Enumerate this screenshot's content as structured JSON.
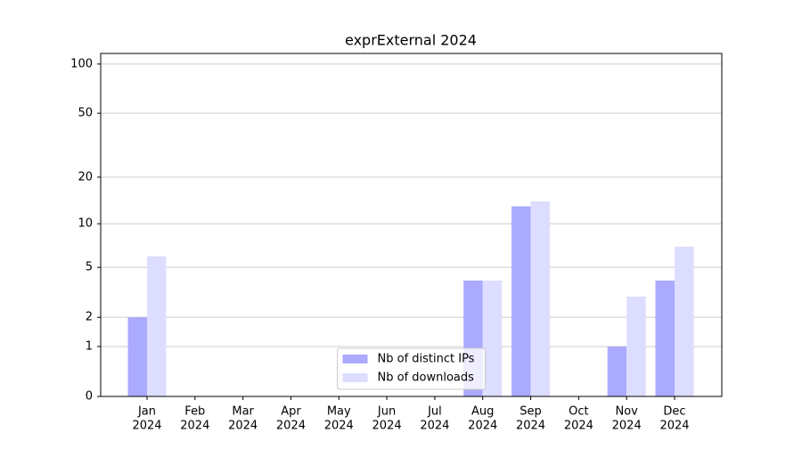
{
  "chart_data": {
    "type": "bar",
    "title": "exprExternal 2024",
    "categories": [
      [
        "Jan",
        "2024"
      ],
      [
        "Feb",
        "2024"
      ],
      [
        "Mar",
        "2024"
      ],
      [
        "Apr",
        "2024"
      ],
      [
        "May",
        "2024"
      ],
      [
        "Jun",
        "2024"
      ],
      [
        "Jul",
        "2024"
      ],
      [
        "Aug",
        "2024"
      ],
      [
        "Sep",
        "2024"
      ],
      [
        "Oct",
        "2024"
      ],
      [
        "Nov",
        "2024"
      ],
      [
        "Dec",
        "2024"
      ]
    ],
    "series": [
      {
        "name": "Nb of distinct IPs",
        "color": "#aaaaff",
        "values": [
          2,
          0,
          0,
          0,
          0,
          0,
          0,
          4,
          13,
          0,
          1,
          4
        ]
      },
      {
        "name": "Nb of downloads",
        "color": "#ddddff",
        "values": [
          6,
          0,
          0,
          0,
          0,
          0,
          0,
          4,
          14,
          0,
          3,
          7
        ]
      }
    ],
    "yscale": "log1p",
    "ylim": [
      0,
      116
    ],
    "yticks": [
      0,
      1,
      2,
      5,
      10,
      20,
      50,
      100
    ],
    "grid": true,
    "legend": "lower center"
  }
}
